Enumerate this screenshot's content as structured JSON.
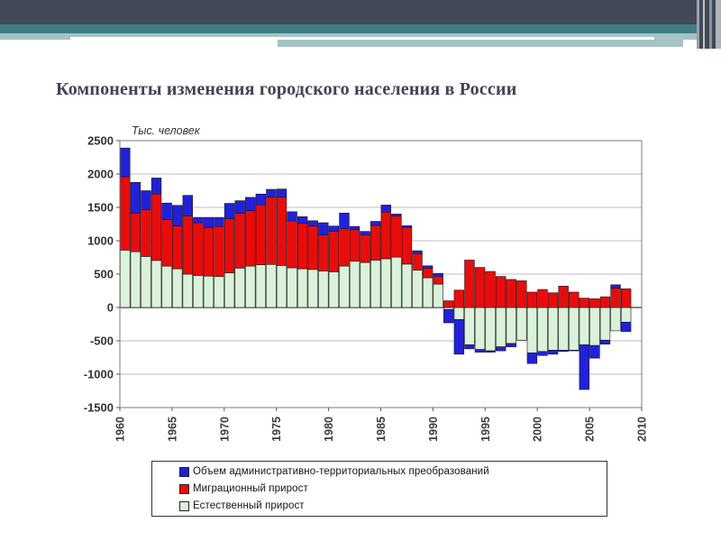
{
  "slide": {
    "title": "Компоненты изменения городского населения в России"
  },
  "theme": {
    "banner_dark": "#434857",
    "banner_teal": "#3E7F86",
    "banner_light_teal": "#A6C3C5",
    "title_color": "#3F4456",
    "grid_color": "#bcbcbc",
    "zero_line_color": "#5a5a5a",
    "frame_color": "#7a7a7a",
    "bar_outline": "#161616"
  },
  "chart_data": {
    "type": "bar",
    "stacked": true,
    "title": "",
    "ylabel": "Тыс. человек",
    "xlabel": "",
    "grid": true,
    "legend_position": "bottom",
    "ylim": [
      -1500,
      2500
    ],
    "yticks": [
      2500,
      2000,
      1500,
      1000,
      500,
      0,
      -500,
      -1000,
      -1500
    ],
    "x_range": [
      1960,
      2010
    ],
    "xticks": [
      1960,
      1965,
      1970,
      1975,
      1980,
      1985,
      1990,
      1995,
      2000,
      2005,
      2010
    ],
    "years": [
      1960,
      1961,
      1962,
      1963,
      1964,
      1965,
      1966,
      1967,
      1968,
      1969,
      1970,
      1971,
      1972,
      1973,
      1974,
      1975,
      1976,
      1977,
      1978,
      1979,
      1980,
      1981,
      1982,
      1983,
      1984,
      1985,
      1986,
      1987,
      1988,
      1989,
      1990,
      1991,
      1992,
      1993,
      1994,
      1995,
      1996,
      1997,
      1998,
      1999,
      2000,
      2001,
      2002,
      2003,
      2004,
      2005,
      2006,
      2007,
      2008
    ],
    "series": [
      {
        "name": "Объем административно-территориальных преобразований",
        "color": "#2121DC",
        "values": [
          430,
          460,
          285,
          240,
          250,
          310,
          310,
          80,
          150,
          135,
          230,
          190,
          200,
          160,
          115,
          120,
          140,
          100,
          80,
          185,
          80,
          235,
          50,
          55,
          60,
          105,
          30,
          25,
          40,
          35,
          45,
          -200,
          -520,
          -60,
          -40,
          -20,
          -60,
          -50,
          0,
          -160,
          -60,
          -60,
          -20,
          -10,
          -670,
          -190,
          -60,
          50,
          -140
        ]
      },
      {
        "name": "Миграционный прирост",
        "color": "#EC0B0B",
        "values": [
          1100,
          580,
          700,
          995,
          695,
          640,
          870,
          790,
          730,
          750,
          810,
          820,
          830,
          900,
          1010,
          1025,
          700,
          680,
          650,
          540,
          605,
          560,
          470,
          410,
          520,
          700,
          615,
          550,
          250,
          145,
          115,
          100,
          260,
          710,
          600,
          540,
          465,
          420,
          400,
          230,
          270,
          220,
          320,
          230,
          140,
          130,
          160,
          290,
          280
        ]
      },
      {
        "name": "Естественный прирост",
        "color": "#D9F2D9",
        "values": [
          860,
          835,
          765,
          705,
          620,
          580,
          500,
          480,
          470,
          465,
          520,
          590,
          620,
          640,
          645,
          630,
          595,
          580,
          570,
          545,
          535,
          620,
          695,
          675,
          710,
          730,
          755,
          650,
          560,
          445,
          350,
          -30,
          -180,
          -560,
          -630,
          -650,
          -590,
          -540,
          -490,
          -680,
          -660,
          -640,
          -640,
          -640,
          -560,
          -570,
          -490,
          -350,
          -220
        ]
      }
    ]
  }
}
